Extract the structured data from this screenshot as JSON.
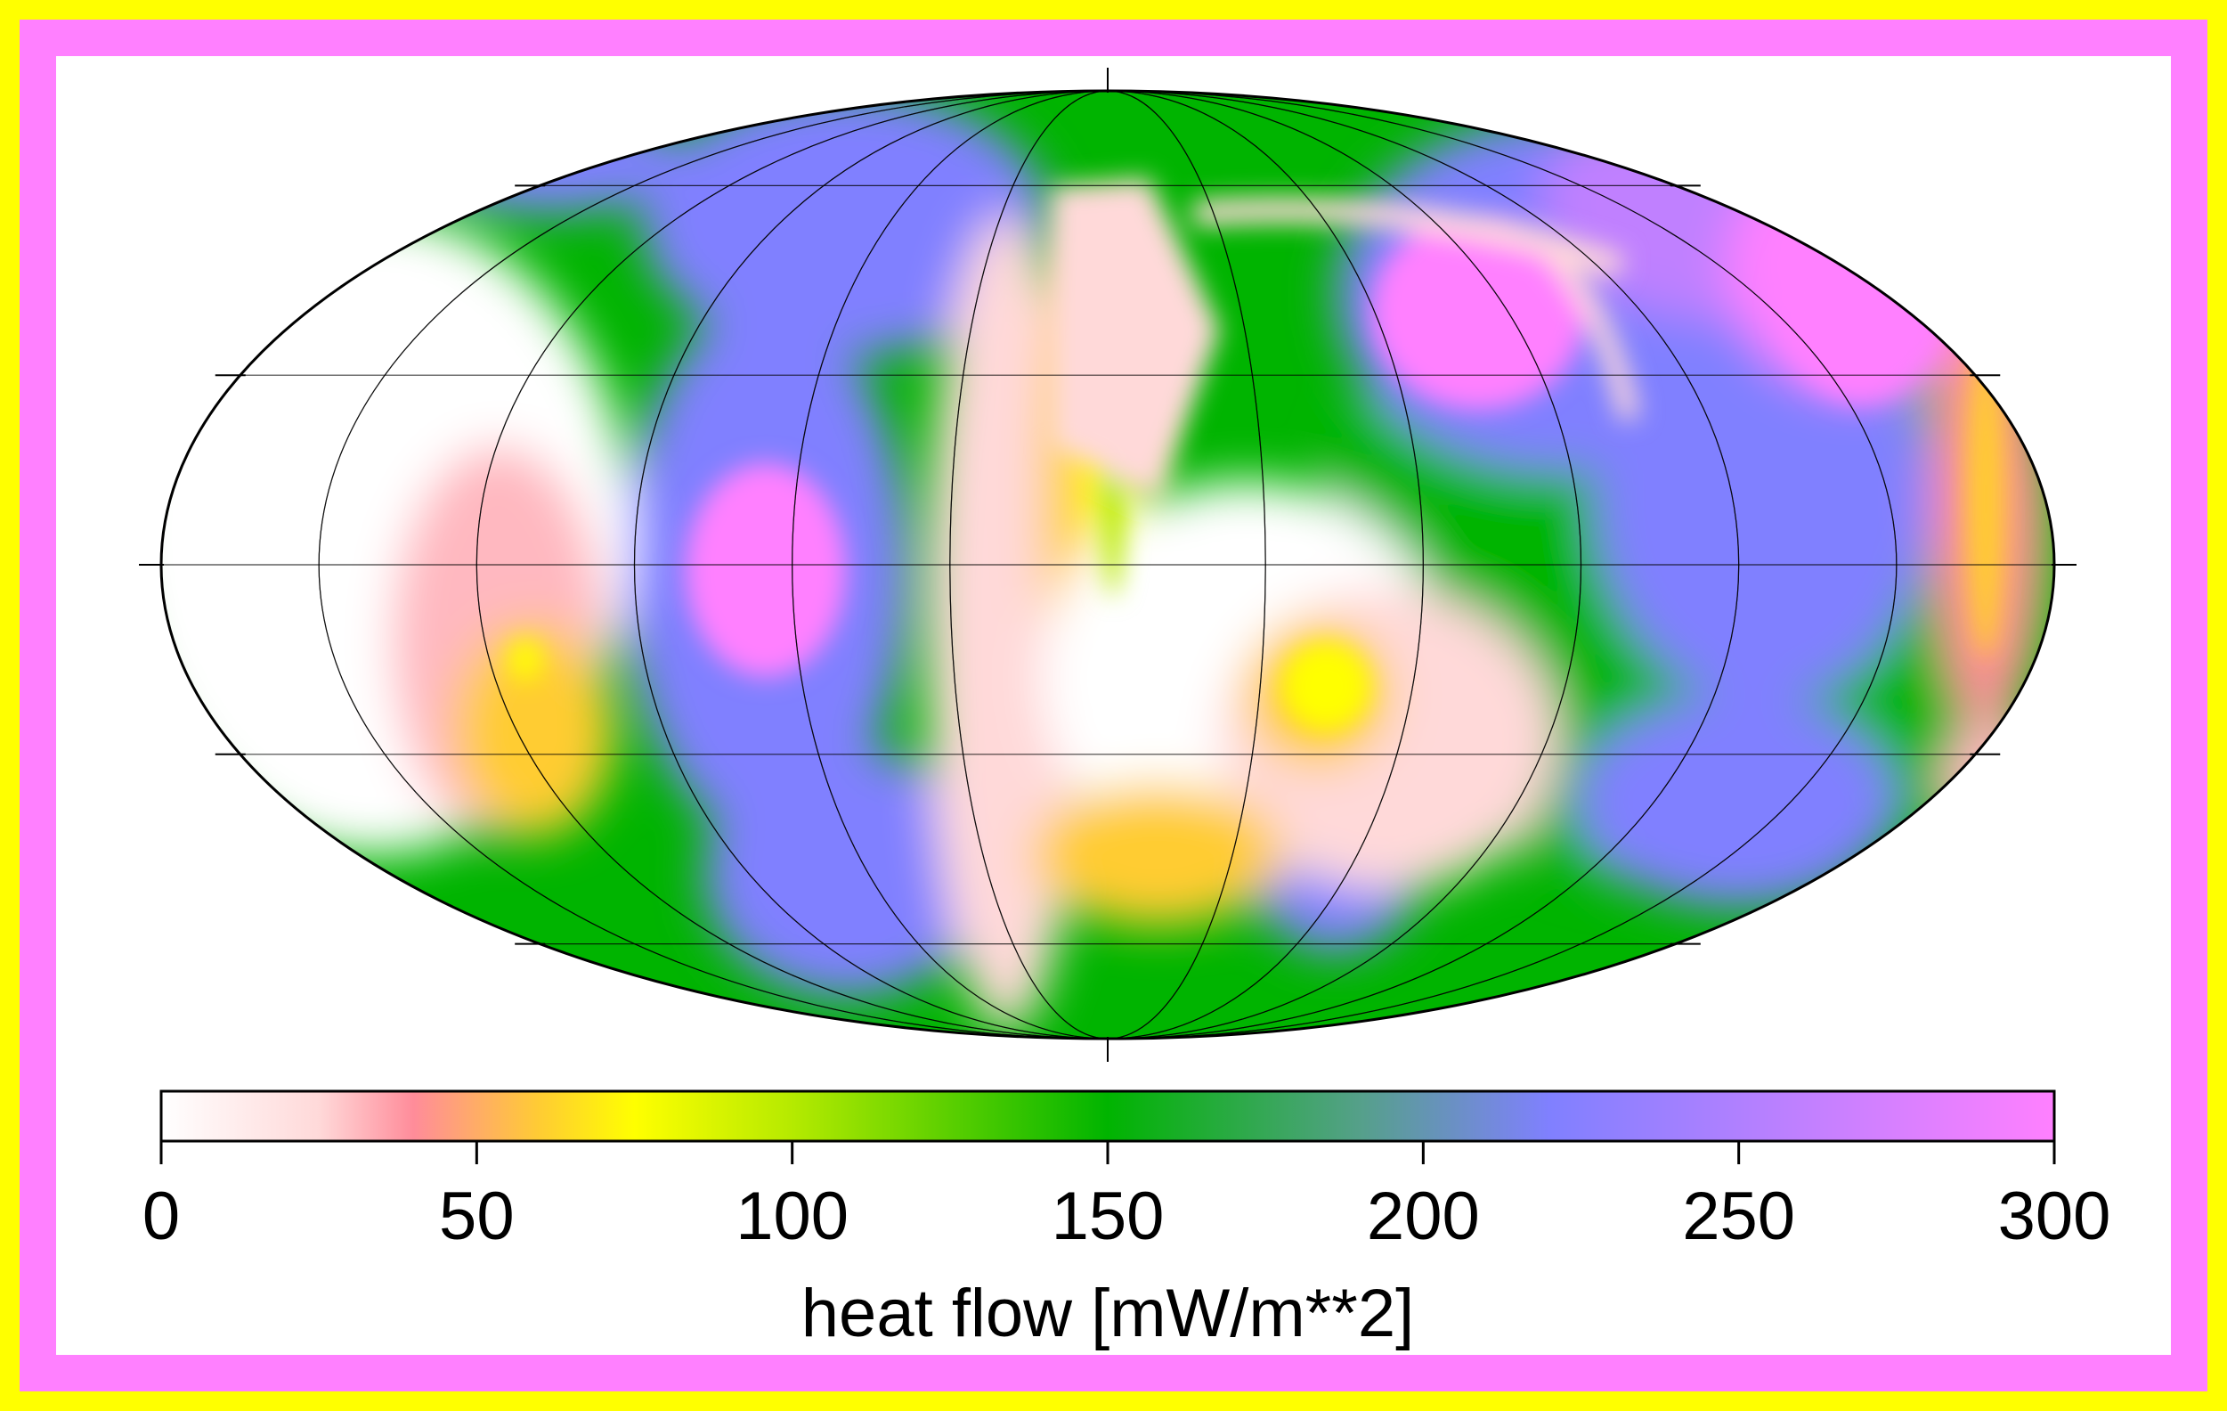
{
  "map": {
    "projection": "Mollweide",
    "variable": "heat flow",
    "grid": true
  },
  "colorbar": {
    "title": "heat flow [mW/m**2]",
    "range": [
      0,
      300
    ],
    "ticks": [
      "0",
      "50",
      "100",
      "150",
      "200",
      "250",
      "300"
    ],
    "tick_values": [
      0,
      50,
      100,
      150,
      200,
      250,
      300
    ],
    "stops": [
      {
        "value": 0,
        "color": "#ffffff"
      },
      {
        "value": 25,
        "color": "#ffd9d9"
      },
      {
        "value": 40,
        "color": "#ff8c9a"
      },
      {
        "value": 60,
        "color": "#ffcc33"
      },
      {
        "value": 75,
        "color": "#ffff00"
      },
      {
        "value": 100,
        "color": "#b5ea00"
      },
      {
        "value": 150,
        "color": "#00b400"
      },
      {
        "value": 190,
        "color": "#55a08a"
      },
      {
        "value": 220,
        "color": "#8080ff"
      },
      {
        "value": 260,
        "color": "#c080ff"
      },
      {
        "value": 300,
        "color": "#ff80ff"
      }
    ]
  },
  "colors": {
    "outer_border": "#ffff00",
    "inner_border": "#ff80ff",
    "background": "#ffffff"
  }
}
